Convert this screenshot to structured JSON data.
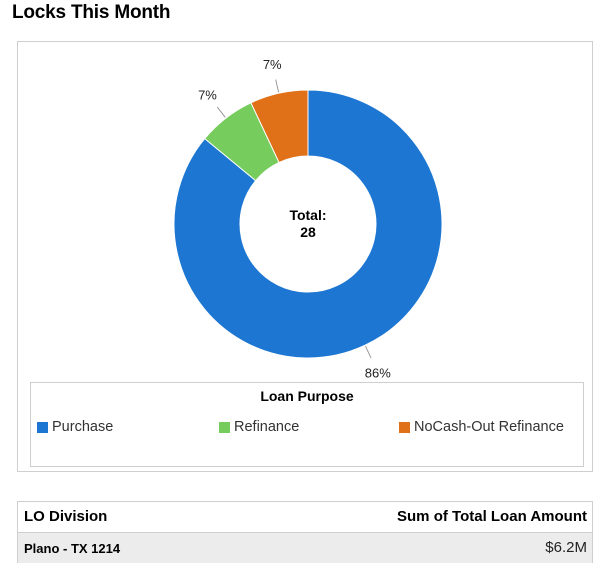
{
  "title": "Locks This Month",
  "colors": {
    "purchase": "#1c76d2",
    "refinance": "#77cc5e",
    "nocashout": "#e07119",
    "border": "#cfcfcf"
  },
  "chart_data": {
    "type": "pie",
    "donut": true,
    "center_label": {
      "line1": "Total:",
      "line2": "28"
    },
    "legend_title": "Loan Purpose",
    "legend_position": "bottom",
    "slices": [
      {
        "label": "Purchase",
        "percent": 86,
        "display": "86%",
        "color": "#1c76d2"
      },
      {
        "label": "Refinance",
        "percent": 7,
        "display": "7%",
        "color": "#77cc5e"
      },
      {
        "label": "NoCash-Out Refinance",
        "percent": 7,
        "display": "7%",
        "color": "#e07119"
      }
    ]
  },
  "table": {
    "headers": [
      "LO Division",
      "Sum of Total Loan Amount"
    ],
    "rows": [
      {
        "division": "Plano - TX 1214",
        "amount": "$6.2M"
      }
    ]
  }
}
